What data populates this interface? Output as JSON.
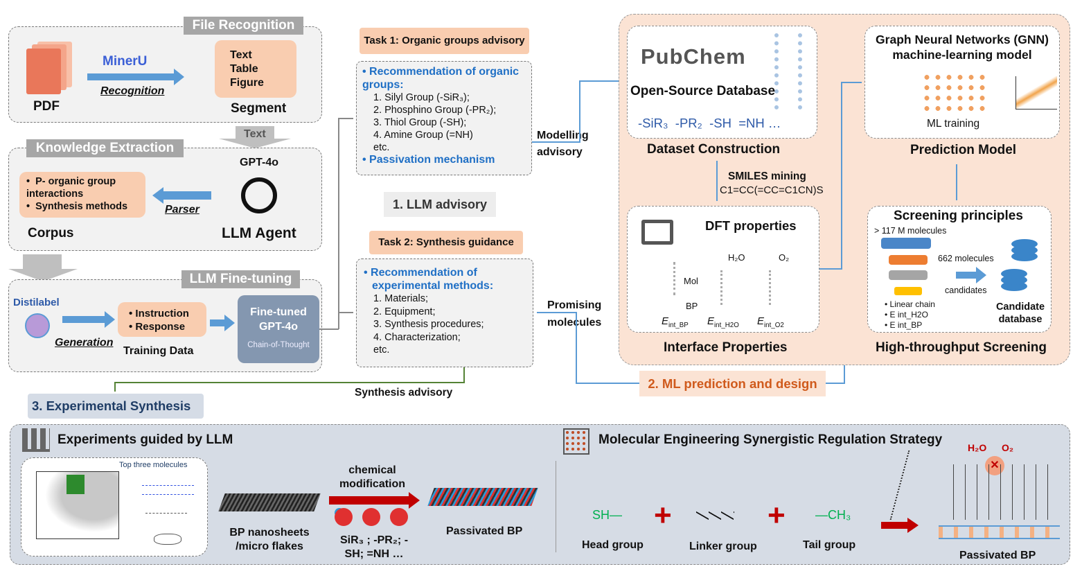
{
  "file_recognition": {
    "title": "File Recognition",
    "pdf": "PDF",
    "tool": "MinerU",
    "recognition": "Recognition",
    "segment_items": [
      "Text",
      "Table",
      "Figure"
    ],
    "segment": "Segment",
    "text_label": "Text"
  },
  "knowledge_extraction": {
    "title": "Knowledge Extraction",
    "gpt": "GPT-4o",
    "corpus_items": [
      "P- organic group interactions",
      "Synthesis methods"
    ],
    "parser": "Parser",
    "corpus": "Corpus",
    "agent": "LLM Agent"
  },
  "fine_tuning": {
    "title": "LLM Fine-tuning",
    "distilabel": "Distilabel",
    "generation": "Generation",
    "training_items": [
      "Instruction",
      "Response"
    ],
    "training_data": "Training Data",
    "model": "Fine-tuned GPT-4o",
    "cot": "Chain-of-Thought"
  },
  "task1": {
    "title": "Task 1: Organic groups advisory",
    "heading": "Recommendation  of organic groups:",
    "items": [
      "1. Silyl Group (-SiR₃);",
      "2. Phosphino Group (-PR₂);",
      "3. Thiol Group (-SH);",
      "4. Amine Group (=NH)",
      "etc."
    ],
    "mechanism": "Passivation mechanism"
  },
  "llm_advisory": "1. LLM advisory",
  "task2": {
    "title": "Task 2: Synthesis guidance",
    "heading": "Recommendation  of experimental methods:",
    "items": [
      "1. Materials;",
      "2. Equipment;",
      "3. Synthesis procedures;",
      "4. Characterization;",
      "etc."
    ]
  },
  "modelling_advisory": "Modelling advisory",
  "promising_molecules": "Promising molecules",
  "synthesis_advisory": "Synthesis advisory",
  "dataset": {
    "logo": "PubChem",
    "subtitle": "Open-Source Database",
    "groups": "-SiR₃  -PR₂  -SH  =NH …",
    "caption": "Dataset Construction"
  },
  "smiles": {
    "title": "SMILES mining",
    "example": "C1=CC(=CC=C1CN)S"
  },
  "prediction": {
    "title": "Graph Neural Networks (GNN) machine-learning model",
    "training": "ML training",
    "caption": "Prediction Model"
  },
  "dft": {
    "title": "DFT properties",
    "h2o": "H₂O",
    "o2": "O₂",
    "mol": "Mol",
    "bp": "BP",
    "e1": "E",
    "e1sub": "int_BP",
    "e2": "E",
    "e2sub": "int_H2O",
    "e3": "E",
    "e3sub": "int_O2",
    "caption": "Interface Properties"
  },
  "screening": {
    "title": "Screening principles",
    "input": "> 117 M molecules",
    "count": "662 molecules",
    "candidates": "candidates",
    "criteria": [
      "Linear chain",
      "E int_H2O",
      "E int_BP"
    ],
    "database": "Candidate database",
    "caption": "High-throughput Screening"
  },
  "ml_section": "2. ML prediction and design",
  "exp_section": "3. Experimental Synthesis",
  "experiments": {
    "title": "Experiments guided by LLM",
    "top_three": "Top three molecules",
    "bp": "BP nanosheets /micro flakes",
    "chem_mod": "chemical modification",
    "groups": "SiR₃ ; -PR₂; -SH; =NH …",
    "passivated": "Passivated BP"
  },
  "molecular": {
    "title": "Molecular Engineering Synergistic Regulation Strategy",
    "head": "Head group",
    "linker": "Linker group",
    "tail": "Tail group",
    "sh": "SH—",
    "ch3": "—CH₃",
    "h2o": "H₂O",
    "o2": "O₂",
    "passivated": "Passivated BP"
  },
  "colors": {
    "peach": "#f9cdb0",
    "blue_accent": "#1f6fc5",
    "arrow": "#5b9bd5",
    "red": "#c00000",
    "green": "#00b050"
  }
}
